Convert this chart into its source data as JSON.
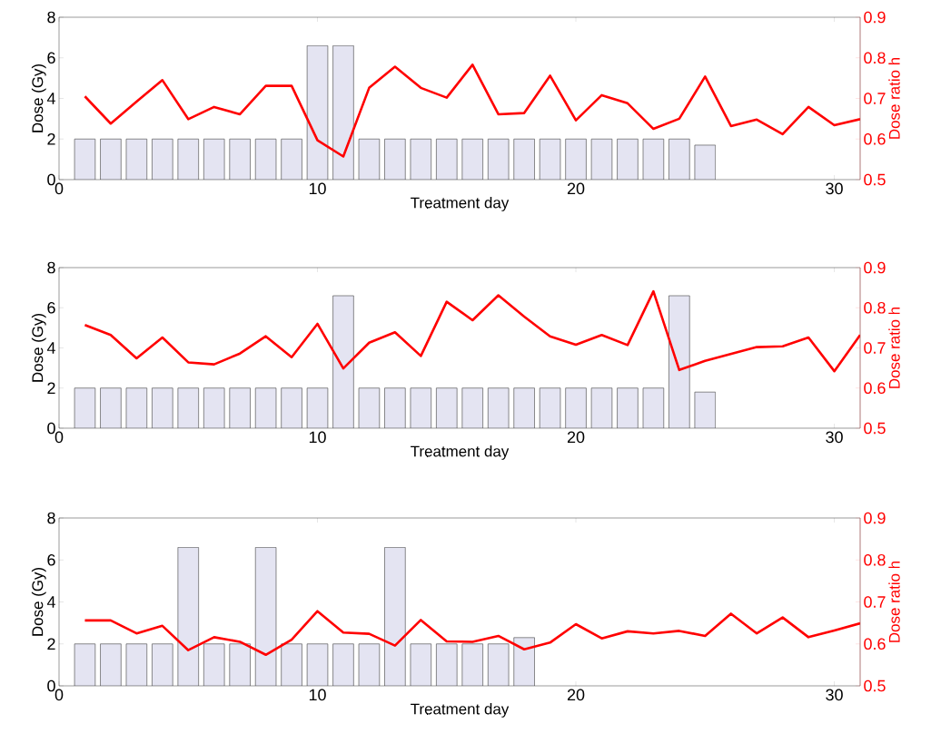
{
  "chart_data": [
    {
      "type": "bar",
      "xlabel": "Treatment day",
      "ylabel": "Dose (Gy)",
      "y2label": "Dose ratio h",
      "xlim": [
        0,
        31
      ],
      "xticks": [
        0,
        10,
        20,
        30
      ],
      "ylim": [
        0,
        8
      ],
      "yticks": [
        0,
        2,
        4,
        6,
        8
      ],
      "y2lim": [
        0.5,
        0.9
      ],
      "y2ticks": [
        0.5,
        0.6,
        0.7,
        0.8,
        0.9
      ],
      "series": [
        {
          "color": "#e4e4f2",
          "x": [
            1,
            2,
            3,
            4,
            5,
            6,
            7,
            8,
            9,
            10,
            11,
            12,
            13,
            14,
            15,
            16,
            17,
            18,
            19,
            20,
            21,
            22,
            23,
            24,
            25
          ],
          "values": [
            2,
            2,
            2,
            2,
            2,
            2,
            2,
            2,
            2,
            6.6,
            6.6,
            2,
            2,
            2,
            2,
            2,
            2,
            2,
            2,
            2,
            2,
            2,
            2,
            2,
            1.7
          ]
        },
        {
          "type": "line",
          "axis": "y2",
          "color": "#ff0000",
          "x": [
            1,
            2,
            3,
            4,
            5,
            6,
            7,
            8,
            9,
            10,
            11,
            12,
            13,
            14,
            15,
            16,
            17,
            18,
            19,
            20,
            21,
            22,
            23,
            24,
            25,
            26,
            27,
            28,
            29,
            30,
            31
          ],
          "values": [
            0.705,
            0.638,
            0.692,
            0.745,
            0.649,
            0.679,
            0.661,
            0.731,
            0.731,
            0.597,
            0.557,
            0.726,
            0.778,
            0.726,
            0.702,
            0.783,
            0.661,
            0.664,
            0.756,
            0.646,
            0.708,
            0.688,
            0.625,
            0.65,
            0.754,
            0.632,
            0.648,
            0.612,
            0.679,
            0.634,
            0.649
          ]
        }
      ]
    },
    {
      "type": "bar",
      "xlabel": "Treatment day",
      "ylabel": "Dose (Gy)",
      "y2label": "Dose ratio h",
      "xlim": [
        0,
        31
      ],
      "xticks": [
        0,
        10,
        20,
        30
      ],
      "ylim": [
        0,
        8
      ],
      "yticks": [
        0,
        2,
        4,
        6,
        8
      ],
      "y2lim": [
        0.5,
        0.9
      ],
      "y2ticks": [
        0.5,
        0.6,
        0.7,
        0.8,
        0.9
      ],
      "series": [
        {
          "color": "#e4e4f2",
          "x": [
            1,
            2,
            3,
            4,
            5,
            6,
            7,
            8,
            9,
            10,
            11,
            12,
            13,
            14,
            15,
            16,
            17,
            18,
            19,
            20,
            21,
            22,
            23,
            24,
            25
          ],
          "values": [
            2,
            2,
            2,
            2,
            2,
            2,
            2,
            2,
            2,
            2,
            6.6,
            2,
            2,
            2,
            2,
            2,
            2,
            2,
            2,
            2,
            2,
            2,
            2,
            6.6,
            1.8
          ]
        },
        {
          "type": "line",
          "axis": "y2",
          "color": "#ff0000",
          "x": [
            1,
            2,
            3,
            4,
            5,
            6,
            7,
            8,
            9,
            10,
            11,
            12,
            13,
            14,
            15,
            16,
            17,
            18,
            19,
            20,
            21,
            22,
            23,
            24,
            25,
            26,
            27,
            28,
            29,
            30,
            31
          ],
          "values": [
            0.757,
            0.732,
            0.674,
            0.726,
            0.664,
            0.659,
            0.686,
            0.729,
            0.677,
            0.76,
            0.649,
            0.713,
            0.739,
            0.68,
            0.815,
            0.769,
            0.831,
            0.778,
            0.729,
            0.708,
            0.732,
            0.707,
            0.841,
            0.645,
            0.668,
            0.685,
            0.702,
            0.704,
            0.726,
            0.642,
            0.732
          ]
        }
      ]
    },
    {
      "type": "bar",
      "xlabel": "Treatment day",
      "ylabel": "Dose (Gy)",
      "y2label": "Dose ratio h",
      "xlim": [
        0,
        31
      ],
      "xticks": [
        0,
        10,
        20,
        30
      ],
      "ylim": [
        0,
        8
      ],
      "yticks": [
        0,
        2,
        4,
        6,
        8
      ],
      "y2lim": [
        0.5,
        0.9
      ],
      "y2ticks": [
        0.5,
        0.6,
        0.7,
        0.8,
        0.9
      ],
      "series": [
        {
          "color": "#e4e4f2",
          "x": [
            1,
            2,
            3,
            4,
            5,
            6,
            7,
            8,
            9,
            10,
            11,
            12,
            13,
            14,
            15,
            16,
            17,
            18
          ],
          "values": [
            2,
            2,
            2,
            2,
            6.6,
            2,
            2,
            6.6,
            2,
            2,
            2,
            2,
            6.6,
            2,
            2,
            2,
            2,
            2.3
          ]
        },
        {
          "type": "line",
          "axis": "y2",
          "color": "#ff0000",
          "x": [
            1,
            2,
            3,
            4,
            5,
            6,
            7,
            8,
            9,
            10,
            11,
            12,
            13,
            14,
            15,
            16,
            17,
            18,
            19,
            20,
            21,
            22,
            23,
            24,
            25,
            26,
            27,
            28,
            29,
            30,
            31
          ],
          "values": [
            0.656,
            0.656,
            0.625,
            0.643,
            0.585,
            0.616,
            0.605,
            0.574,
            0.61,
            0.678,
            0.627,
            0.624,
            0.596,
            0.657,
            0.606,
            0.605,
            0.619,
            0.587,
            0.603,
            0.647,
            0.613,
            0.63,
            0.625,
            0.631,
            0.619,
            0.672,
            0.625,
            0.663,
            0.616,
            0.632,
            0.649
          ]
        }
      ]
    }
  ]
}
